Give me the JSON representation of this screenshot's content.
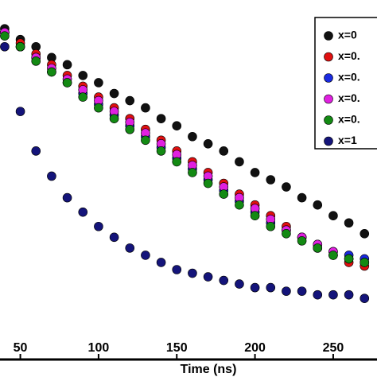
{
  "chart_data": {
    "type": "scatter",
    "x_label": "Time (ns)",
    "x": [
      40,
      50,
      60,
      70,
      80,
      90,
      100,
      110,
      120,
      130,
      140,
      150,
      160,
      170,
      180,
      190,
      200,
      210,
      220,
      230,
      240,
      250,
      260,
      270
    ],
    "xlim": [
      37,
      278
    ],
    "xticks": [
      50,
      100,
      150,
      200,
      250
    ],
    "ylim": [
      0,
      1
    ],
    "legend": "upper right",
    "series": [
      {
        "name": "x=0",
        "color": "#111111",
        "values": [
          0.92,
          0.89,
          0.87,
          0.84,
          0.82,
          0.79,
          0.77,
          0.74,
          0.72,
          0.7,
          0.67,
          0.65,
          0.62,
          0.6,
          0.58,
          0.55,
          0.52,
          0.5,
          0.48,
          0.45,
          0.43,
          0.4,
          0.38,
          0.35
        ]
      },
      {
        "name": "x=0.",
        "color": "#e01010",
        "values": [
          0.91,
          0.88,
          0.85,
          0.82,
          0.79,
          0.76,
          0.73,
          0.7,
          0.67,
          0.64,
          0.61,
          0.58,
          0.55,
          0.52,
          0.49,
          0.46,
          0.43,
          0.4,
          0.37,
          0.34,
          0.31,
          0.29,
          0.27,
          0.26
        ]
      },
      {
        "name": "x=0.",
        "color": "#1a2ae0",
        "values": [
          0.91,
          0.87,
          0.84,
          0.8,
          0.77,
          0.74,
          0.71,
          0.68,
          0.65,
          0.62,
          0.59,
          0.56,
          0.53,
          0.5,
          0.47,
          0.44,
          0.41,
          0.38,
          0.36,
          0.34,
          0.32,
          0.3,
          0.29,
          0.28
        ]
      },
      {
        "name": "x=0.",
        "color": "#e020e0",
        "values": [
          0.91,
          0.87,
          0.84,
          0.81,
          0.78,
          0.75,
          0.72,
          0.69,
          0.66,
          0.63,
          0.6,
          0.57,
          0.54,
          0.51,
          0.48,
          0.45,
          0.42,
          0.39,
          0.36,
          0.34,
          0.32,
          0.3,
          0.28,
          0.27
        ]
      },
      {
        "name": "x=0.",
        "color": "#138a13",
        "values": [
          0.9,
          0.87,
          0.83,
          0.8,
          0.77,
          0.73,
          0.7,
          0.67,
          0.64,
          0.61,
          0.58,
          0.55,
          0.52,
          0.49,
          0.46,
          0.43,
          0.4,
          0.37,
          0.35,
          0.33,
          0.31,
          0.29,
          0.28,
          0.27
        ]
      },
      {
        "name": "x=1",
        "color": "#14147a",
        "values": [
          0.87,
          0.69,
          0.58,
          0.51,
          0.45,
          0.41,
          0.37,
          0.34,
          0.31,
          0.29,
          0.27,
          0.25,
          0.24,
          0.23,
          0.22,
          0.21,
          0.2,
          0.2,
          0.19,
          0.19,
          0.18,
          0.18,
          0.18,
          0.17
        ]
      }
    ]
  }
}
